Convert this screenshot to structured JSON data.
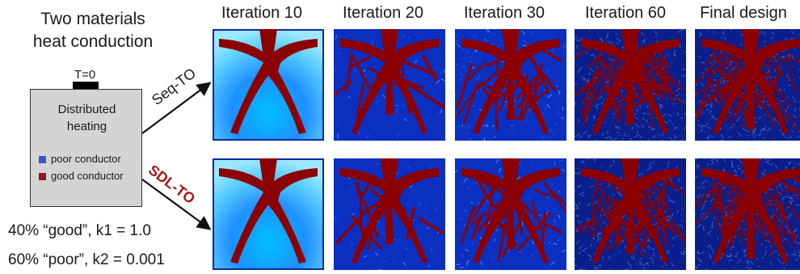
{
  "left_panel": {
    "title_line1": "Two materials",
    "title_line2": "heat conduction",
    "sink_label": "T=0",
    "box_label_line1": "Distributed",
    "box_label_line2": "heating",
    "legend": [
      {
        "label": "poor conductor",
        "color": "#3a56c8"
      },
      {
        "label": "good conductor",
        "color": "#8b1a2a"
      }
    ],
    "stat_line1": "40% “good”, k1 = 1.0",
    "stat_line2": "60% “poor”, k2 = 0.001"
  },
  "columns": [
    "Iteration 10",
    "Iteration 20",
    "Iteration 30",
    "Iteration 60",
    "Final design"
  ],
  "rows": [
    {
      "label": "Seq-TO",
      "label_color": "#111111"
    },
    {
      "label": "SDL-TO",
      "label_color": "#a31515"
    }
  ],
  "colors": {
    "good_material": "#8b0000",
    "poor_material": "#0a1f8c",
    "colormap": [
      "#00008b",
      "#0040ff",
      "#00bfff",
      "#7fffd4",
      "#ffff00",
      "#ff4000",
      "#8b0000"
    ]
  }
}
